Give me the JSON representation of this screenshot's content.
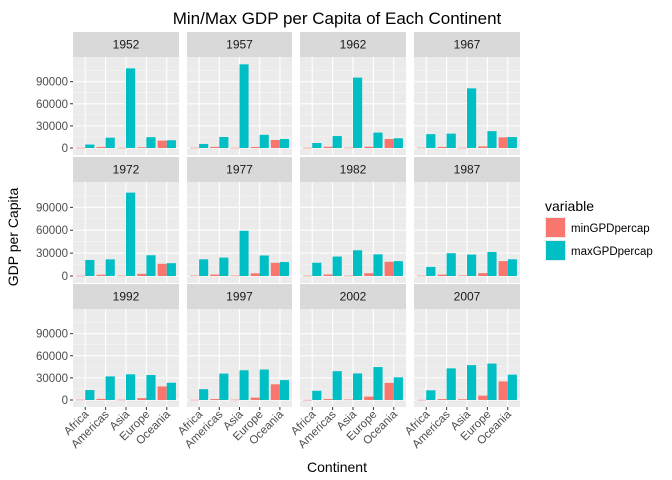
{
  "chart_data": {
    "type": "bar",
    "title": "Min/Max GDP per Capita of Each Continent",
    "xlabel": "Continent",
    "ylabel": "GDP per Capita",
    "categories": [
      "Africa",
      "Americas",
      "Asia",
      "Europe",
      "Oceania"
    ],
    "ylim": [
      0,
      118000
    ],
    "yticks": [
      0,
      30000,
      60000,
      90000
    ],
    "ytick_labels": [
      "0",
      "30000",
      "60000",
      "90000"
    ],
    "grid": true,
    "legend": {
      "title": "variable",
      "position": "right",
      "entries": [
        {
          "name": "minGPDpercap",
          "color": "#F8766D"
        },
        {
          "name": "maxGPDpercap",
          "color": "#00BFC4"
        }
      ]
    },
    "colors": {
      "panel_bg": "#EBEBEB",
      "strip_bg": "#D9D9D9",
      "grid": "#FFFFFF"
    },
    "facets": [
      {
        "label": "1952",
        "series": [
          {
            "name": "minGPDpercap",
            "values": [
              300,
              1400,
              330,
              970,
              10000
            ]
          },
          {
            "name": "maxGPDpercap",
            "values": [
              4700,
              14000,
              108000,
              14700,
              10500
            ]
          }
        ]
      },
      {
        "label": "1957",
        "series": [
          {
            "name": "minGPDpercap",
            "values": [
              340,
              1500,
              350,
              1350,
              10900
            ]
          },
          {
            "name": "maxGPDpercap",
            "values": [
              5500,
              14900,
              113500,
              17900,
              12200
            ]
          }
        ]
      },
      {
        "label": "1962",
        "series": [
          {
            "name": "minGPDpercap",
            "values": [
              360,
              1700,
              390,
              1710,
              12200
            ]
          },
          {
            "name": "maxGPDpercap",
            "values": [
              6800,
              16200,
              95500,
              20900,
              13200
            ]
          }
        ]
      },
      {
        "label": "1967",
        "series": [
          {
            "name": "minGPDpercap",
            "values": [
              410,
              1450,
              350,
              2170,
              14500
            ]
          },
          {
            "name": "maxGPDpercap",
            "values": [
              18800,
              19500,
              80900,
              22900,
              14900
            ]
          }
        ]
      },
      {
        "label": "1972",
        "series": [
          {
            "name": "minGPDpercap",
            "values": [
              360,
              1600,
              390,
              2860,
              16000
            ]
          },
          {
            "name": "maxGPDpercap",
            "values": [
              21000,
              21800,
              109300,
              27200,
              16800
            ]
          }
        ]
      },
      {
        "label": "1977",
        "series": [
          {
            "name": "minGPDpercap",
            "values": [
              500,
              1900,
              520,
              3530,
              17300
            ]
          },
          {
            "name": "maxGPDpercap",
            "values": [
              21900,
              24100,
              59300,
              26900,
              18300
            ]
          }
        ]
      },
      {
        "label": "1982",
        "series": [
          {
            "name": "minGPDpercap",
            "values": [
              440,
              2000,
              420,
              3630,
              18600
            ]
          },
          {
            "name": "maxGPDpercap",
            "values": [
              17400,
              25500,
              33700,
              28400,
              19500
            ]
          }
        ]
      },
      {
        "label": "1987",
        "series": [
          {
            "name": "minGPDpercap",
            "values": [
              390,
              1800,
              610,
              3740,
              19500
            ]
          },
          {
            "name": "maxGPDpercap",
            "values": [
              11900,
              29900,
              28100,
              31500,
              21900
            ]
          }
        ]
      },
      {
        "label": "1992",
        "series": [
          {
            "name": "minGPDpercap",
            "values": [
              410,
              1500,
              400,
              2500,
              18400
            ]
          },
          {
            "name": "maxGPDpercap",
            "values": [
              13500,
              32000,
              34900,
              33900,
              23400
            ]
          }
        ]
      },
      {
        "label": "1997",
        "series": [
          {
            "name": "minGPDpercap",
            "values": [
              310,
              1340,
              420,
              3190,
              21300
            ]
          },
          {
            "name": "maxGPDpercap",
            "values": [
              14700,
              35800,
              40300,
              41300,
              27000
            ]
          }
        ]
      },
      {
        "label": "2002",
        "series": [
          {
            "name": "minGPDpercap",
            "values": [
              240,
              1270,
              600,
              4600,
              23200
            ]
          },
          {
            "name": "maxGPDpercap",
            "values": [
              12500,
              39100,
              36000,
              44700,
              30700
            ]
          }
        ]
      },
      {
        "label": "2007",
        "series": [
          {
            "name": "minGPDpercap",
            "values": [
              280,
              1200,
              940,
              5940,
              25200
            ]
          },
          {
            "name": "maxGPDpercap",
            "values": [
              13200,
              42900,
              47300,
              49400,
              34400
            ]
          }
        ]
      }
    ]
  }
}
